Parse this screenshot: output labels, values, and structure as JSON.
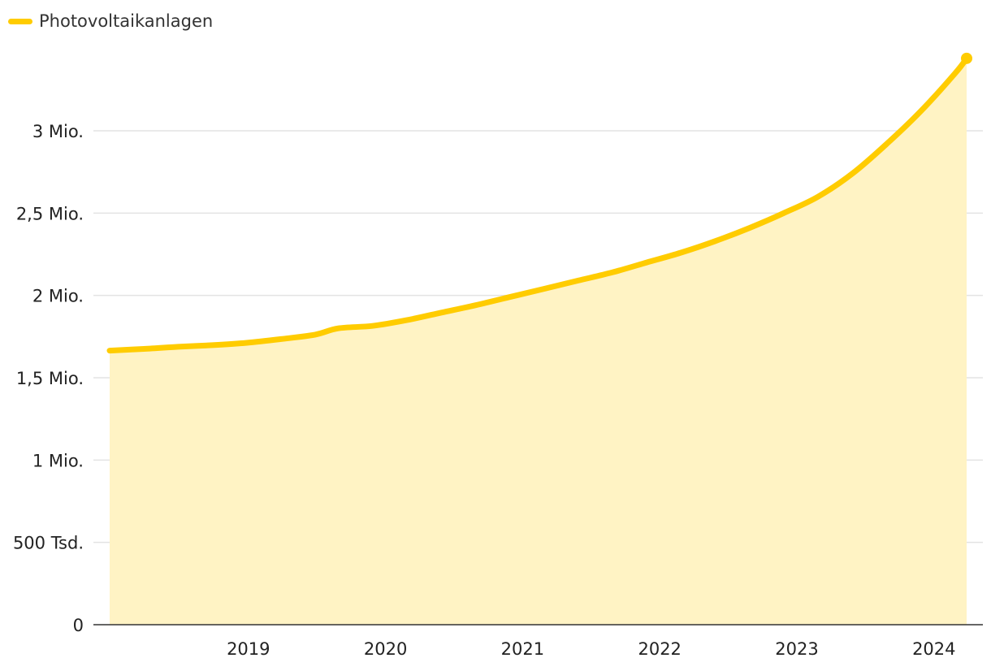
{
  "chart_data": {
    "type": "area",
    "legend": {
      "position": "top-left",
      "entries": [
        "Photovoltaikanlagen"
      ]
    },
    "ylim": [
      0,
      3500000
    ],
    "xlim": [
      "2018-01",
      "2024-04"
    ],
    "y_ticks": [
      {
        "value": 0,
        "label": "0"
      },
      {
        "value": 500000,
        "label": "500 Tsd."
      },
      {
        "value": 1000000,
        "label": "1 Mio."
      },
      {
        "value": 1500000,
        "label": "1,5 Mio."
      },
      {
        "value": 2000000,
        "label": "2 Mio."
      },
      {
        "value": 2500000,
        "label": "2,5 Mio."
      },
      {
        "value": 3000000,
        "label": "3 Mio."
      }
    ],
    "x_ticks": [
      "2019",
      "2020",
      "2021",
      "2022",
      "2023",
      "2024"
    ],
    "grid": "horizontal",
    "colors": {
      "line": "#FFCC00",
      "area": "#FFF3C4",
      "grid": "#E3E3E3",
      "axis": "#333333"
    },
    "series": [
      {
        "name": "Photovoltaikanlagen",
        "x": [
          "2018-01",
          "2018-04",
          "2018-07",
          "2018-10",
          "2019-01",
          "2019-04",
          "2019-07",
          "2019-09",
          "2019-12",
          "2020-03",
          "2020-06",
          "2020-09",
          "2020-12",
          "2021-03",
          "2021-06",
          "2021-09",
          "2021-12",
          "2022-03",
          "2022-06",
          "2022-09",
          "2022-12",
          "2023-03",
          "2023-06",
          "2023-09",
          "2023-12",
          "2024-03",
          "2024-04"
        ],
        "values": [
          1665000,
          1675000,
          1688000,
          1698000,
          1712000,
          1735000,
          1762000,
          1800000,
          1815000,
          1850000,
          1895000,
          1940000,
          1990000,
          2040000,
          2090000,
          2140000,
          2200000,
          2260000,
          2330000,
          2410000,
          2500000,
          2600000,
          2740000,
          2920000,
          3120000,
          3350000,
          3440000
        ]
      }
    ]
  }
}
